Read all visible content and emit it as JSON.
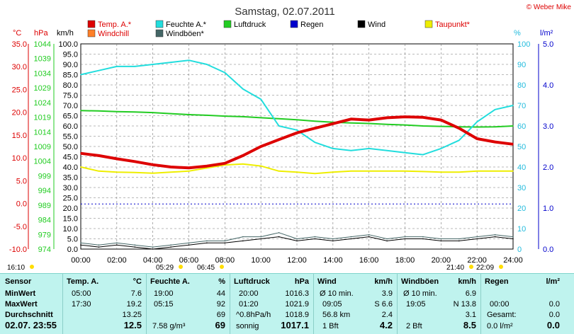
{
  "chart_data": {
    "type": "line",
    "title": "Samstag, 02.07.2011",
    "watermark": "© Weber Mike",
    "legend": [
      {
        "name": "Temp. A.*",
        "color": "#dd0000"
      },
      {
        "name": "Feuchte A.*",
        "color": "#22dddd"
      },
      {
        "name": "Luftdruck",
        "color": "#22cc22"
      },
      {
        "name": "Regen",
        "color": "#0000cc"
      },
      {
        "name": "Wind",
        "color": "#000000"
      },
      {
        "name": "Taupunkt*",
        "color": "#eeee00"
      },
      {
        "name": "Windchill",
        "color": "#ff7f27"
      },
      {
        "name": "Windböen*",
        "color": "#446666"
      }
    ],
    "axis_units": {
      "temp": "°C",
      "pressure": "hPa",
      "speed": "km/h",
      "humidity": "%",
      "rain": "l/m²"
    },
    "temp_ticks": [
      "35.0",
      "30.0",
      "25.0",
      "20.0",
      "15.0",
      "10.0",
      "5.0",
      "0.0",
      "-5.0",
      "-10.0"
    ],
    "pressure_ticks": [
      "1044",
      "1039",
      "1034",
      "1029",
      "1024",
      "1019",
      "1014",
      "1009",
      "1004",
      "999",
      "994",
      "989",
      "984",
      "979",
      "974"
    ],
    "speed_ticks": [
      "100.0",
      "95.0",
      "90.0",
      "85.0",
      "80.0",
      "75.0",
      "70.0",
      "65.0",
      "60.0",
      "55.0",
      "50.0",
      "45.0",
      "40.0",
      "35.0",
      "30.0",
      "25.0",
      "20.0",
      "15.0",
      "10.0",
      "5.0",
      "0.0"
    ],
    "humidity_ticks": [
      "100",
      "90",
      "80",
      "70",
      "60",
      "50",
      "40",
      "30",
      "20",
      "10",
      "0"
    ],
    "rain_ticks": [
      "5.0",
      "4.0",
      "3.0",
      "2.0",
      "1.0",
      "0.0"
    ],
    "x_labels": [
      "00:00",
      "02:00",
      "04:00",
      "06:00",
      "08:00",
      "10:00",
      "12:00",
      "14:00",
      "16:00",
      "18:00",
      "20:00",
      "22:00",
      "24:00"
    ],
    "ylim_temp": [
      -10,
      35
    ],
    "ylim_speed": [
      0,
      100
    ],
    "ylim_humidity": [
      0,
      100
    ],
    "hours": [
      0,
      1,
      2,
      3,
      4,
      5,
      6,
      7,
      8,
      9,
      10,
      11,
      12,
      13,
      14,
      15,
      16,
      17,
      18,
      19,
      20,
      21,
      22,
      23,
      24
    ],
    "series": [
      {
        "name": "Temp. A.*",
        "axis": "temp",
        "color": "#dd0000",
        "values": [
          11.0,
          10.5,
          9.8,
          9.2,
          8.5,
          8.0,
          7.8,
          8.2,
          8.8,
          10.5,
          12.5,
          14.0,
          15.5,
          16.5,
          17.5,
          18.5,
          18.3,
          18.8,
          19.0,
          18.9,
          18.3,
          16.5,
          14.2,
          13.5,
          13.0
        ]
      },
      {
        "name": "Feuchte A.*",
        "axis": "humidity",
        "color": "#22dddd",
        "values": [
          85,
          87,
          89,
          89,
          90,
          91,
          92,
          90,
          86,
          78,
          73,
          60,
          58,
          52,
          49,
          48,
          49,
          48,
          47,
          46,
          49,
          53,
          62,
          68,
          70
        ]
      },
      {
        "name": "Luftdruck",
        "axis": "speed",
        "color": "#22cc22",
        "values": [
          67.5,
          67.3,
          67.0,
          66.8,
          66.5,
          66.0,
          65.5,
          65.2,
          64.8,
          64.5,
          64.0,
          63.5,
          63.0,
          62.3,
          61.8,
          61.5,
          61.2,
          60.8,
          60.5,
          60.0,
          59.8,
          59.6,
          59.5,
          59.6,
          60.0
        ]
      },
      {
        "name": "Taupunkt*",
        "axis": "speed",
        "color": "#eeee00",
        "values": [
          40.0,
          38.0,
          37.5,
          37.3,
          37.0,
          37.5,
          38.0,
          39.5,
          41.0,
          41.5,
          40.5,
          38.0,
          37.5,
          36.8,
          37.5,
          38.0,
          38.0,
          38.0,
          38.0,
          37.8,
          37.5,
          37.5,
          38.0,
          38.0,
          38.0
        ]
      },
      {
        "name": "Wind",
        "axis": "speed",
        "color": "#000000",
        "values": [
          2,
          1,
          2,
          1,
          0,
          1,
          2,
          3,
          3,
          4,
          5,
          6,
          4,
          5,
          4,
          5,
          6,
          4,
          5,
          5,
          4,
          4,
          5,
          6,
          5
        ]
      },
      {
        "name": "Windböen*",
        "axis": "speed",
        "color": "#446666",
        "values": [
          3,
          2,
          3,
          2,
          1,
          2,
          3,
          4,
          4,
          6,
          6,
          8,
          5,
          6,
          5,
          6,
          7,
          5,
          6,
          6,
          5,
          5,
          6,
          7,
          6
        ]
      },
      {
        "name": "Regen",
        "axis": "rain",
        "color": "#0000cc",
        "values": [
          1.1,
          1.1,
          1.1,
          1.1,
          1.1,
          1.1,
          1.1,
          1.1,
          1.1,
          1.1,
          1.1,
          1.1,
          1.1,
          1.1,
          1.1,
          1.1,
          1.1,
          1.1,
          1.1,
          1.1,
          1.1,
          1.1,
          1.1,
          1.1,
          1.1
        ]
      }
    ],
    "sun_events": [
      "16:10",
      "05:29",
      "06:45",
      "21:40",
      "22:09"
    ],
    "grid": true
  },
  "summary": {
    "sensor": {
      "header": "Sensor",
      "min": "MinWert",
      "max": "MaxWert",
      "avg": "Durchschnitt",
      "now": "02.07. 23:55"
    },
    "temp": {
      "header": "Temp. A.",
      "unit": "°C",
      "min_time": "05:00",
      "min": "7.6",
      "max_time": "17:30",
      "max": "19.2",
      "avg": "13.25",
      "now": "12.5"
    },
    "humidity": {
      "header": "Feuchte A.",
      "unit": "%",
      "min_time": "19:00",
      "min": "44",
      "max_time": "05:15",
      "max": "92",
      "avg": "69",
      "now_extra": "7.58 g/m³",
      "now": "69"
    },
    "pressure": {
      "header": "Luftdruck",
      "unit": "hPa",
      "min_time": "20:00",
      "min": "1016.3",
      "max_time": "01:20",
      "max": "1021.9",
      "avg_label": "^0.8hPa/h",
      "avg": "1018.9",
      "now_label": "sonnig",
      "now": "1017.1"
    },
    "wind": {
      "header": "Wind",
      "unit": "km/h",
      "min_label": "Ø 10 min.",
      "min": "3.9",
      "max_time": "09:05",
      "max": "S 6.6",
      "avg_label": "56.8 km",
      "avg": "2.4",
      "now_label": "1 Bft",
      "now": "4.2"
    },
    "gusts": {
      "header": "Windböen",
      "unit": "km/h",
      "min_label": "Ø 10 min.",
      "min": "6.9",
      "max_time": "19:05",
      "max": "N 13.8",
      "avg": "3.1",
      "now_label": "2 Bft",
      "now": "8.5"
    },
    "rain": {
      "header": "Regen",
      "unit": "l/m²",
      "max_time": "00:00",
      "max": "0.0",
      "avg_label": "Gesamt:",
      "avg": "0.0",
      "now_label": "0.0 l/m²",
      "now": "0.0"
    }
  }
}
